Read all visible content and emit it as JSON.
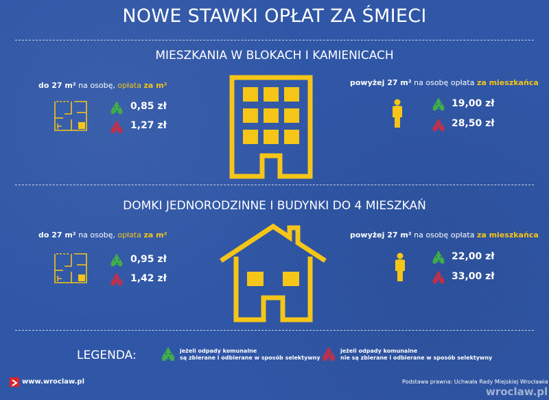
{
  "header": {
    "title": "NOWE STAWKI OPŁAT ZA ŚMIECI"
  },
  "sections": [
    {
      "title": "MIESZKANIA W BLOKACH  I KAMIENICACH",
      "left": {
        "area": "do 27 m²",
        "mid": "na osobę,",
        "fee": "opłata",
        "per": "za m²",
        "price_selective": "0,85 zł",
        "price_mixed": "1,27 zł"
      },
      "right": {
        "area": "powyżej 27 m²",
        "mid": "na osobę opłata",
        "per": "za mieszkańca",
        "price_selective": "19,00 zł",
        "price_mixed": "28,50 zł"
      }
    },
    {
      "title": "DOMKI JEDNORODZINNE I BUDYNKI DO 4 MIESZKAŃ",
      "left": {
        "area": "do 27 m²",
        "mid": "na osobę,",
        "fee": "opłata",
        "per": "za m²",
        "price_selective": "0,95 zł",
        "price_mixed": "1,42 zł"
      },
      "right": {
        "area": "powyżej 27 m²",
        "mid": "na osobę opłata",
        "per": "za mieszkańca",
        "price_selective": "22,00 zł",
        "price_mixed": "33,00 zł"
      }
    }
  ],
  "legend": {
    "title": "LEGENDA:",
    "selective_1": "jeżeli odpady komunalne",
    "selective_2": "są zbierane i odbierane w sposób selektywny",
    "mixed_1": "jeżeli odpady komunalne",
    "mixed_2": "nie są zbierane i odbierane w sposób selektywny"
  },
  "footer": {
    "site": "www.wroclaw.pl",
    "basis": "Podstawa prawna: Uchwała Rady Miejskiej Wrocławia",
    "watermark": "wroclaw.pl"
  },
  "colors": {
    "accent": "#f5c518",
    "green": "#3fae49",
    "red": "#c0304a",
    "background": "#2e56a8"
  }
}
